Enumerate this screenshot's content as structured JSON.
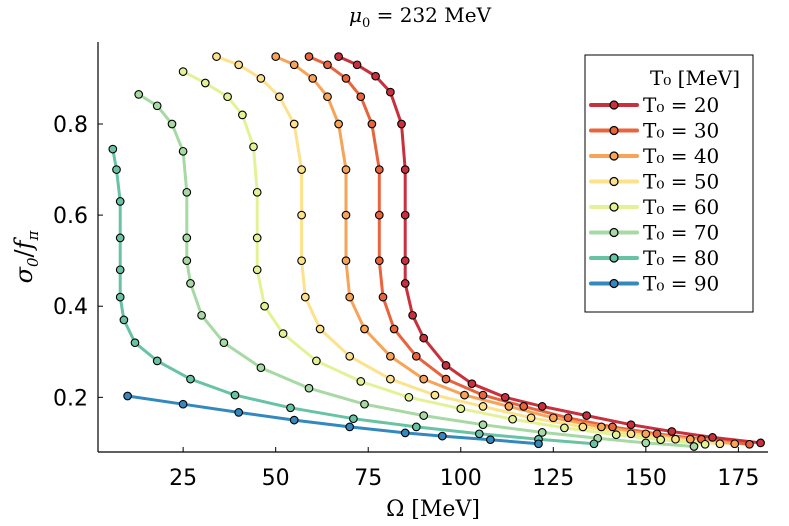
{
  "chart_data": {
    "type": "line",
    "title": "μ₀ = 232 MeV",
    "title_parts": {
      "symbol": "μ",
      "sub": "0",
      "rest": " = 232 MeV"
    },
    "xlabel": "Ω [MeV]",
    "ylabel": "σ₀/f_π",
    "xlim": [
      2,
      183
    ],
    "ylim": [
      0.08,
      0.98
    ],
    "xticks": [
      25,
      50,
      75,
      100,
      125,
      150,
      175
    ],
    "yticks": [
      0.2,
      0.4,
      0.6,
      0.8
    ],
    "xtick_labels": [
      "25",
      "50",
      "75",
      "100",
      "125",
      "150",
      "175"
    ],
    "ytick_labels": [
      "0.2",
      "0.4",
      "0.6",
      "0.8"
    ],
    "grid": false,
    "legend": {
      "title": "T₀ [MeV]",
      "placement": "top-right"
    },
    "series": [
      {
        "name": "T₀ = 20",
        "T0": "20",
        "color": "#c8303d",
        "points": [
          [
            67,
            0.948
          ],
          [
            72,
            0.93
          ],
          [
            77,
            0.905
          ],
          [
            81,
            0.87
          ],
          [
            84,
            0.8
          ],
          [
            85,
            0.7
          ],
          [
            85,
            0.6
          ],
          [
            85,
            0.5
          ],
          [
            85,
            0.45
          ],
          [
            87,
            0.38
          ],
          [
            90,
            0.33
          ],
          [
            96,
            0.27
          ],
          [
            103,
            0.23
          ],
          [
            112,
            0.2
          ],
          [
            122,
            0.18
          ],
          [
            134,
            0.16
          ],
          [
            146,
            0.14
          ],
          [
            157,
            0.125
          ],
          [
            168,
            0.112
          ],
          [
            181,
            0.1
          ]
        ]
      },
      {
        "name": "T₀ = 30",
        "T0": "30",
        "color": "#e8643d",
        "points": [
          [
            59,
            0.948
          ],
          [
            64,
            0.93
          ],
          [
            69,
            0.9
          ],
          [
            73,
            0.86
          ],
          [
            76,
            0.8
          ],
          [
            78,
            0.7
          ],
          [
            78,
            0.6
          ],
          [
            78,
            0.5
          ],
          [
            79,
            0.42
          ],
          [
            82,
            0.35
          ],
          [
            88,
            0.29
          ],
          [
            96,
            0.24
          ],
          [
            106,
            0.205
          ],
          [
            117,
            0.18
          ],
          [
            129,
            0.155
          ],
          [
            141,
            0.135
          ],
          [
            153,
            0.12
          ],
          [
            165,
            0.108
          ],
          [
            178,
            0.097
          ]
        ]
      },
      {
        "name": "T₀ = 40",
        "T0": "40",
        "color": "#f7a358",
        "points": [
          [
            50,
            0.948
          ],
          [
            55,
            0.93
          ],
          [
            60,
            0.9
          ],
          [
            64,
            0.86
          ],
          [
            67,
            0.8
          ],
          [
            69,
            0.7
          ],
          [
            69,
            0.6
          ],
          [
            69,
            0.5
          ],
          [
            70,
            0.42
          ],
          [
            74,
            0.35
          ],
          [
            81,
            0.29
          ],
          [
            90,
            0.24
          ],
          [
            101,
            0.205
          ],
          [
            113,
            0.18
          ],
          [
            125,
            0.155
          ],
          [
            138,
            0.135
          ],
          [
            150,
            0.12
          ],
          [
            162,
            0.108
          ],
          [
            174,
            0.098
          ]
        ]
      },
      {
        "name": "T₀ = 50",
        "T0": "50",
        "color": "#fde28b",
        "points": [
          [
            34,
            0.948
          ],
          [
            40,
            0.93
          ],
          [
            46,
            0.9
          ],
          [
            51,
            0.86
          ],
          [
            55,
            0.8
          ],
          [
            57,
            0.7
          ],
          [
            57,
            0.6
          ],
          [
            57,
            0.5
          ],
          [
            58,
            0.42
          ],
          [
            62,
            0.35
          ],
          [
            70,
            0.29
          ],
          [
            81,
            0.24
          ],
          [
            93,
            0.205
          ],
          [
            106,
            0.18
          ],
          [
            119,
            0.155
          ],
          [
            133,
            0.135
          ],
          [
            146,
            0.12
          ],
          [
            158,
            0.108
          ],
          [
            170,
            0.098
          ]
        ]
      },
      {
        "name": "T₀ = 60",
        "T0": "60",
        "color": "#e4f296",
        "points": [
          [
            25,
            0.915
          ],
          [
            31,
            0.89
          ],
          [
            37,
            0.86
          ],
          [
            41,
            0.82
          ],
          [
            44,
            0.75
          ],
          [
            45,
            0.65
          ],
          [
            45,
            0.55
          ],
          [
            45,
            0.48
          ],
          [
            47,
            0.4
          ],
          [
            52,
            0.34
          ],
          [
            61,
            0.28
          ],
          [
            73,
            0.235
          ],
          [
            86,
            0.2
          ],
          [
            100,
            0.175
          ],
          [
            114,
            0.152
          ],
          [
            128,
            0.133
          ],
          [
            142,
            0.118
          ],
          [
            154,
            0.107
          ],
          [
            166,
            0.097
          ]
        ]
      },
      {
        "name": "T₀ = 70",
        "T0": "70",
        "color": "#a7d9a4",
        "points": [
          [
            13,
            0.865
          ],
          [
            18,
            0.84
          ],
          [
            22,
            0.8
          ],
          [
            25,
            0.74
          ],
          [
            26,
            0.65
          ],
          [
            26,
            0.55
          ],
          [
            26,
            0.5
          ],
          [
            27,
            0.45
          ],
          [
            30,
            0.38
          ],
          [
            36,
            0.32
          ],
          [
            46,
            0.265
          ],
          [
            59,
            0.22
          ],
          [
            74,
            0.185
          ],
          [
            90,
            0.16
          ],
          [
            106,
            0.14
          ],
          [
            122,
            0.123
          ],
          [
            137,
            0.11
          ],
          [
            150,
            0.1
          ],
          [
            163,
            0.092
          ]
        ]
      },
      {
        "name": "T₀ = 80",
        "T0": "80",
        "color": "#67c3a4",
        "points": [
          [
            6,
            0.745
          ],
          [
            7,
            0.7
          ],
          [
            8,
            0.63
          ],
          [
            8,
            0.55
          ],
          [
            8,
            0.48
          ],
          [
            8,
            0.42
          ],
          [
            9,
            0.37
          ],
          [
            12,
            0.32
          ],
          [
            18,
            0.28
          ],
          [
            27,
            0.24
          ],
          [
            39,
            0.205
          ],
          [
            54,
            0.177
          ],
          [
            71,
            0.153
          ],
          [
            88,
            0.135
          ],
          [
            105,
            0.12
          ],
          [
            121,
            0.108
          ],
          [
            136,
            0.098
          ]
        ]
      },
      {
        "name": "T₀ = 90",
        "T0": "90",
        "color": "#3388bd",
        "points": [
          [
            10,
            0.203
          ],
          [
            25,
            0.185
          ],
          [
            40,
            0.167
          ],
          [
            55,
            0.15
          ],
          [
            70,
            0.135
          ],
          [
            85,
            0.122
          ],
          [
            95,
            0.115
          ],
          [
            108,
            0.107
          ],
          [
            121,
            0.098
          ]
        ]
      }
    ]
  }
}
